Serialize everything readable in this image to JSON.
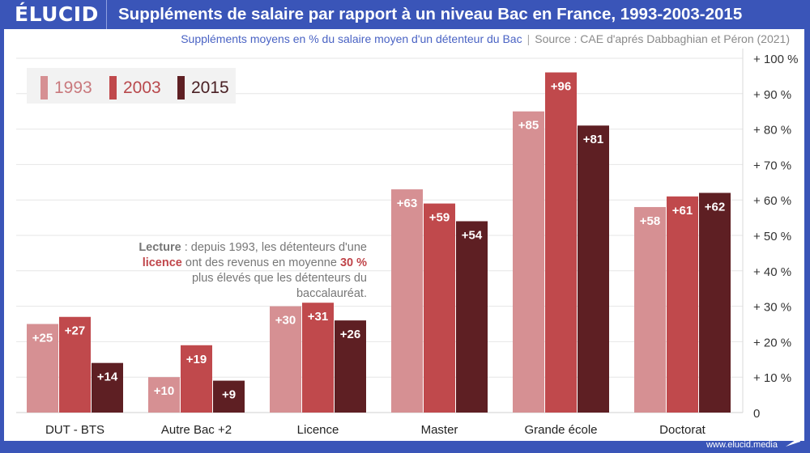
{
  "brand": {
    "logo": "ÉLUCID",
    "url": "www.elucid.media"
  },
  "header": {
    "title": "Suppléments de salaire par rapport à un niveau Bac en France, 1993-2003-2015"
  },
  "subtitle": {
    "main": "Suppléments moyens en % du salaire moyen d'un détenteur du Bac",
    "separator": "|",
    "source": "Source : CAE d'aprés Dabbaghian et Péron (2021)"
  },
  "note": {
    "lead": "Lecture",
    "part1": " : depuis 1993, les détenteurs d'une ",
    "highlight1": "licence",
    "part2": " ont des revenus en moyenne ",
    "highlight2": "30 %",
    "part3": " plus élevés que les détenteurs du baccalauréat."
  },
  "colors": {
    "s1993": "#d69093",
    "s2003": "#c0494c",
    "s2015": "#5e1f23",
    "frame": "#3a55b8",
    "grid": "#e6e6e6"
  },
  "chart_data": {
    "type": "bar",
    "title": "Suppléments de salaire par rapport à un niveau Bac en France, 1993-2003-2015",
    "subtitle": "Suppléments moyens en % du salaire moyen d'un détenteur du Bac",
    "xlabel": "",
    "ylabel": "",
    "categories": [
      "DUT - BTS",
      "Autre Bac +2",
      "Licence",
      "Master",
      "Grande école",
      "Doctorat"
    ],
    "series": [
      {
        "name": "1993",
        "values": [
          25,
          10,
          30,
          63,
          85,
          58
        ]
      },
      {
        "name": "2003",
        "values": [
          27,
          19,
          31,
          59,
          96,
          61
        ]
      },
      {
        "name": "2015",
        "values": [
          14,
          9,
          26,
          54,
          81,
          62
        ]
      }
    ],
    "data_labels": [
      [
        "+25",
        "+10",
        "+30",
        "+63",
        "+85",
        "+58"
      ],
      [
        "+27",
        "+19",
        "+31",
        "+59",
        "+96",
        "+61"
      ],
      [
        "+14",
        "+9",
        "+26",
        "+54",
        "+81",
        "+62"
      ]
    ],
    "ylim": [
      0,
      100
    ],
    "yticks": [
      0,
      10,
      20,
      30,
      40,
      50,
      60,
      70,
      80,
      90,
      100
    ],
    "ytick_labels": [
      "0",
      "+ 10 %",
      "+ 20 %",
      "+ 30 %",
      "+ 40 %",
      "+ 50 %",
      "+ 60 %",
      "+ 70 %",
      "+ 80 %",
      "+ 90 %",
      "+ 100 %"
    ],
    "y_axis_side": "right",
    "grid": true,
    "legend": {
      "entries": [
        "1993",
        "2003",
        "2015"
      ],
      "placement": "top-left"
    }
  }
}
